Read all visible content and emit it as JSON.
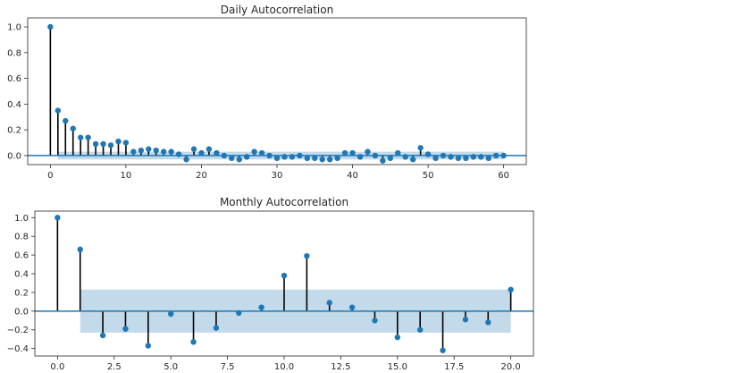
{
  "chart_data": [
    {
      "type": "stem",
      "title": "Daily Autocorrelation",
      "xlabel": "",
      "ylabel": "",
      "xlim": [
        -3,
        63
      ],
      "ylim": [
        -0.07,
        1.07
      ],
      "xticks": [
        0,
        10,
        20,
        30,
        40,
        50,
        60
      ],
      "xtick_labels": [
        "0",
        "10",
        "20",
        "30",
        "40",
        "50",
        "60"
      ],
      "yticks": [
        0.0,
        0.2,
        0.4,
        0.6,
        0.8,
        1.0
      ],
      "ytick_labels": [
        "0.0",
        "0.2",
        "0.4",
        "0.6",
        "0.8",
        "1.0"
      ],
      "x": [
        0,
        1,
        2,
        3,
        4,
        5,
        6,
        7,
        8,
        9,
        10,
        11,
        12,
        13,
        14,
        15,
        16,
        17,
        18,
        19,
        20,
        21,
        22,
        23,
        24,
        25,
        26,
        27,
        28,
        29,
        30,
        31,
        32,
        33,
        34,
        35,
        36,
        37,
        38,
        39,
        40,
        41,
        42,
        43,
        44,
        45,
        46,
        47,
        48,
        49,
        50,
        51,
        52,
        53,
        54,
        55,
        56,
        57,
        58,
        59,
        60
      ],
      "values": [
        1.0,
        0.35,
        0.27,
        0.21,
        0.14,
        0.14,
        0.09,
        0.09,
        0.08,
        0.11,
        0.1,
        0.03,
        0.04,
        0.05,
        0.04,
        0.03,
        0.03,
        0.01,
        -0.03,
        0.05,
        0.02,
        0.05,
        0.02,
        0.0,
        -0.02,
        -0.03,
        -0.01,
        0.03,
        0.02,
        0.0,
        -0.02,
        -0.01,
        -0.01,
        0.0,
        -0.02,
        -0.02,
        -0.03,
        -0.03,
        -0.02,
        0.02,
        0.02,
        -0.01,
        0.03,
        0.0,
        -0.04,
        -0.02,
        0.02,
        -0.01,
        -0.03,
        0.06,
        0.01,
        -0.02,
        0.0,
        -0.01,
        -0.02,
        -0.02,
        -0.01,
        -0.01,
        -0.02,
        0.0,
        0.0
      ],
      "confidence_band": {
        "x": [
          1,
          60
        ],
        "lower": [
          -0.03,
          -0.03
        ],
        "upper": [
          0.03,
          0.03
        ]
      },
      "grid": false,
      "colors": {
        "marker": "#1f77b4",
        "stem": "#000000",
        "baseline": "#1f77b4",
        "band": "#bdd6e9"
      }
    },
    {
      "type": "stem",
      "title": "Monthly Autocorrelation",
      "xlabel": "",
      "ylabel": "",
      "xlim": [
        -1.0,
        21.0
      ],
      "ylim": [
        -0.48,
        1.07
      ],
      "xticks": [
        0,
        2.5,
        5,
        7.5,
        10,
        12.5,
        15,
        17.5,
        20
      ],
      "xtick_labels": [
        "0.0",
        "2.5",
        "5.0",
        "7.5",
        "10.0",
        "12.5",
        "15.0",
        "17.5",
        "20.0"
      ],
      "yticks": [
        -0.4,
        -0.2,
        0.0,
        0.2,
        0.4,
        0.6,
        0.8,
        1.0
      ],
      "ytick_labels": [
        "−0.4",
        "−0.2",
        "0.0",
        "0.2",
        "0.4",
        "0.6",
        "0.8",
        "1.0"
      ],
      "x": [
        0,
        1,
        2,
        3,
        4,
        5,
        6,
        7,
        8,
        9,
        10,
        11,
        12,
        13,
        14,
        15,
        16,
        17,
        18,
        19,
        20
      ],
      "values": [
        1.0,
        0.66,
        -0.26,
        -0.19,
        -0.37,
        -0.03,
        -0.33,
        -0.18,
        -0.02,
        0.04,
        0.38,
        0.59,
        0.09,
        0.04,
        -0.1,
        -0.28,
        -0.2,
        -0.42,
        -0.09,
        -0.12,
        0.23
      ],
      "confidence_band": {
        "x": [
          1,
          20
        ],
        "lower": [
          -0.23,
          -0.23
        ],
        "upper": [
          0.23,
          0.23
        ]
      },
      "grid": false,
      "colors": {
        "marker": "#1f77b4",
        "stem": "#000000",
        "baseline": "#1f77b4",
        "band": "#bdd6e9"
      }
    }
  ]
}
